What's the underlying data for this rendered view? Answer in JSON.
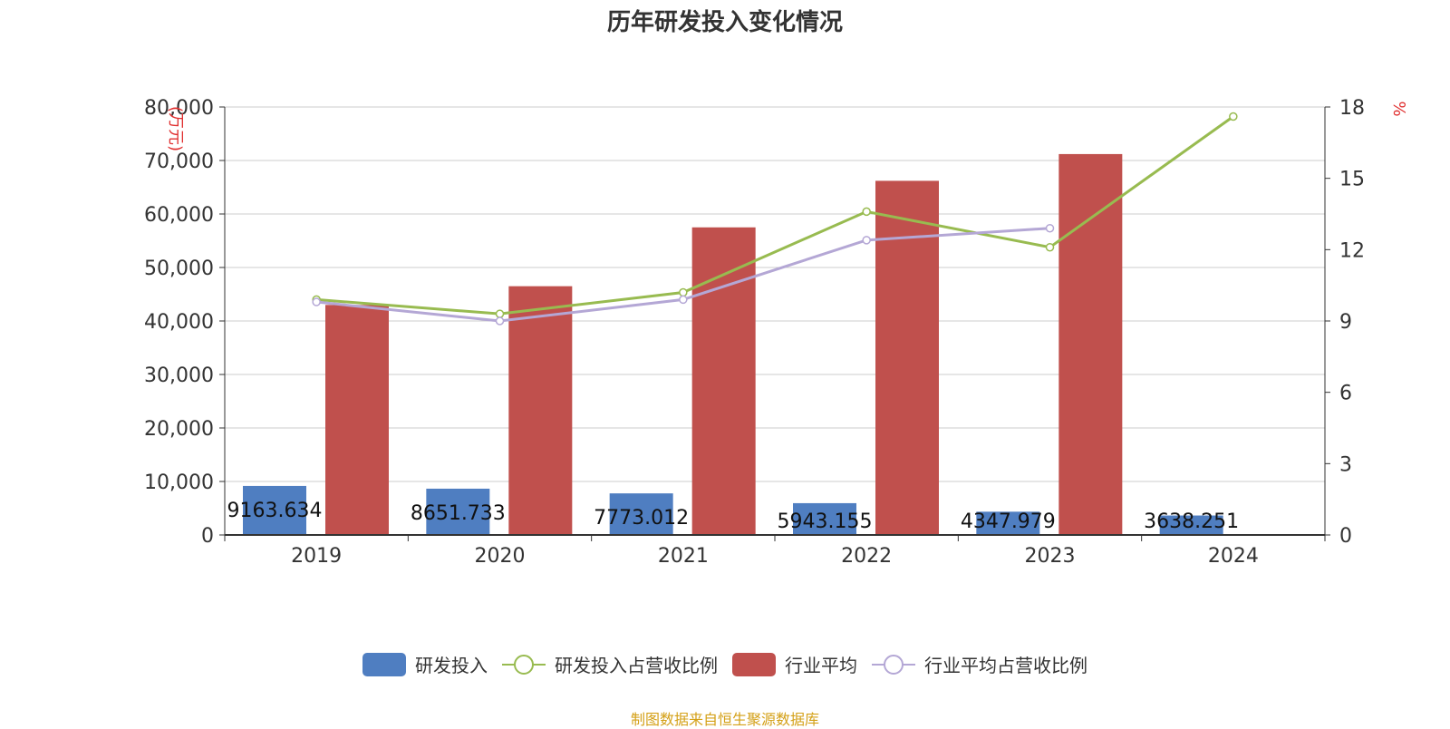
{
  "chart_data": {
    "type": "bar",
    "title": "历年研发投入变化情况",
    "categories": [
      "2019",
      "2020",
      "2021",
      "2022",
      "2023",
      "2024"
    ],
    "ylabel_left": "(万元)",
    "ylabel_right": "%",
    "y_left": {
      "lim": [
        0,
        80000
      ],
      "ticks": [
        "0",
        "10,000",
        "20,000",
        "30,000",
        "40,000",
        "50,000",
        "60,000",
        "70,000",
        "80,000"
      ]
    },
    "y_right": {
      "lim": [
        0,
        18
      ],
      "ticks": [
        "0",
        "3",
        "6",
        "9",
        "12",
        "15",
        "18"
      ]
    },
    "grid": true,
    "legend_position": "bottom",
    "series": [
      {
        "name": "研发投入",
        "kind": "bar",
        "axis": "left",
        "color": "#4f7ec1",
        "values": [
          9163.634,
          8651.733,
          7773.012,
          5943.155,
          4347.979,
          3638.251
        ],
        "labels": [
          "9163.634",
          "8651.733",
          "7773.012",
          "5943.155",
          "4347.979",
          "3638.251"
        ]
      },
      {
        "name": "研发投入占营收比例",
        "kind": "line",
        "axis": "right",
        "color": "#98bb50",
        "values": [
          9.9,
          9.3,
          10.2,
          13.6,
          12.1,
          17.6
        ]
      },
      {
        "name": "行业平均",
        "kind": "bar",
        "axis": "left",
        "color": "#c0504d",
        "values": [
          43000,
          46500,
          57500,
          66200,
          71200,
          null
        ]
      },
      {
        "name": "行业平均占营收比例",
        "kind": "line",
        "axis": "right",
        "color": "#b4a7d5",
        "values": [
          9.8,
          9.0,
          9.9,
          12.4,
          12.9,
          null
        ]
      }
    ]
  },
  "source": "制图数据来自恒生聚源数据库"
}
